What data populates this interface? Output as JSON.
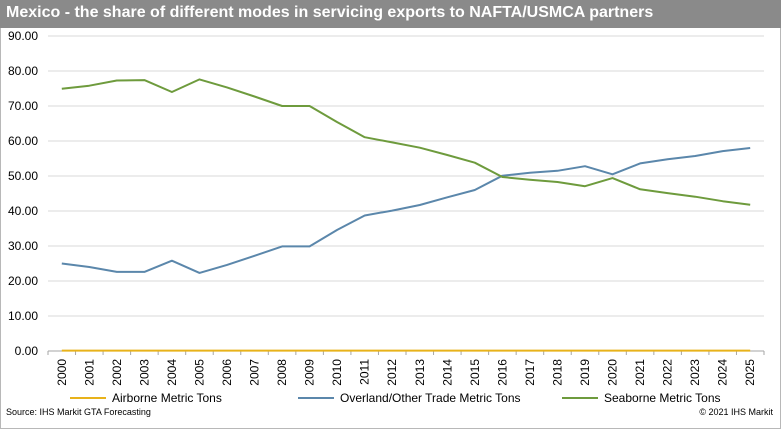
{
  "title": "Mexico - the share of different modes in servicing exports to NAFTA/USMCA partners",
  "source": "Source: IHS Markit GTA Forecasting",
  "copyright": "© 2021 IHS Markit",
  "colors": {
    "title_bg": "#8a8a8a",
    "airborne": "#e8b21a",
    "overland": "#5b87ab",
    "seaborne": "#6e9b3d",
    "grid": "#d9d9d9"
  },
  "chart_data": {
    "type": "line",
    "title": "Mexico - the share of different modes in servicing exports to NAFTA/USMCA partners",
    "xlabel": "",
    "ylabel": "",
    "ylim": [
      0,
      90
    ],
    "y_ticks": [
      "0.00",
      "10.00",
      "20.00",
      "30.00",
      "40.00",
      "50.00",
      "60.00",
      "70.00",
      "80.00",
      "90.00"
    ],
    "grid": true,
    "legend_position": "bottom",
    "x": [
      "2000",
      "2001",
      "2002",
      "2003",
      "2004",
      "2005",
      "2006",
      "2007",
      "2008",
      "2009",
      "2010",
      "2011",
      "2012",
      "2013",
      "2014",
      "2015",
      "2016",
      "2017",
      "2018",
      "2019",
      "2020",
      "2021",
      "2022",
      "2023",
      "2024",
      "2025"
    ],
    "series": [
      {
        "name": "Airborne Metric Tons",
        "color_key": "airborne",
        "values": [
          0.1,
          0.1,
          0.1,
          0.1,
          0.1,
          0.1,
          0.1,
          0.1,
          0.1,
          0.1,
          0.1,
          0.1,
          0.1,
          0.1,
          0.1,
          0.1,
          0.1,
          0.1,
          0.1,
          0.1,
          0.1,
          0.1,
          0.1,
          0.1,
          0.1,
          0.1
        ]
      },
      {
        "name": "Overland/Other Trade Metric Tons",
        "color_key": "overland",
        "values": [
          25.0,
          24.0,
          22.6,
          22.6,
          25.8,
          22.3,
          24.6,
          27.2,
          29.9,
          29.9,
          34.6,
          38.7,
          40.1,
          41.7,
          43.9,
          46.0,
          50.1,
          50.9,
          51.5,
          52.8,
          50.5,
          53.6,
          54.8,
          55.7,
          57.1,
          58.0
        ]
      },
      {
        "name": "Seaborne Metric Tons",
        "color_key": "seaborne",
        "values": [
          74.9,
          75.8,
          77.3,
          77.4,
          74.0,
          77.6,
          75.3,
          72.7,
          70.0,
          70.0,
          65.4,
          61.1,
          59.6,
          58.1,
          56.0,
          53.8,
          49.7,
          48.9,
          48.3,
          47.1,
          49.4,
          46.2,
          45.1,
          44.1,
          42.8,
          41.8
        ]
      }
    ]
  }
}
